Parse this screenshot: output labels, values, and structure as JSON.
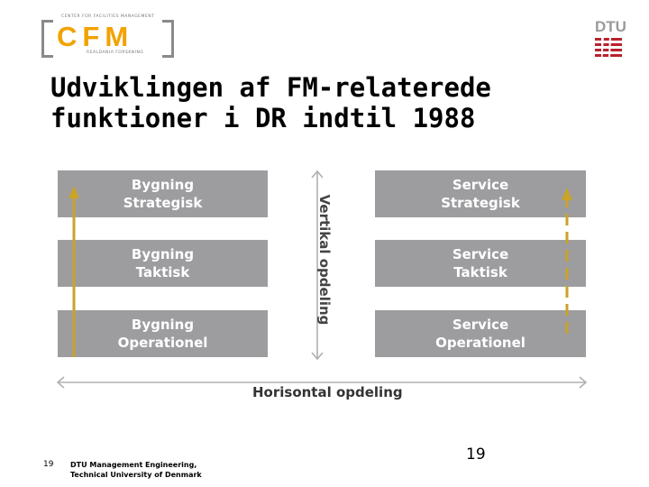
{
  "logo": {
    "top_text": "CENTER FOR FACILITIES MANAGEMENT",
    "letters": "CFM",
    "bottom_text": "REALDANIA FORSKNING",
    "dtu": "DTU"
  },
  "title": {
    "line1": "Udviklingen af FM-relaterede",
    "line2": "funktioner i DR indtil 1988"
  },
  "left_boxes": [
    {
      "line1": "Bygning",
      "line2": "Strategisk"
    },
    {
      "line1": "Bygning",
      "line2": "Taktisk"
    },
    {
      "line1": "Bygning",
      "line2": "Operationel"
    }
  ],
  "right_boxes": [
    {
      "line1": "Service",
      "line2": "Strategisk"
    },
    {
      "line1": "Service",
      "line2": "Taktisk"
    },
    {
      "line1": "Service",
      "line2": "Operationel"
    }
  ],
  "axes": {
    "vertical": "Vertikal opdeling",
    "horizontal": "Horisontal opdeling"
  },
  "colors": {
    "box": "#9d9da0",
    "arrow_gold": "#c9a32a",
    "logo_orange": "#f2a200",
    "dtu_red": "#b8222d"
  },
  "footer": {
    "slide_number": "19",
    "org_line1": "DTU Management Engineering,",
    "org_line2": "Technical University of Denmark",
    "page_number": "19"
  }
}
